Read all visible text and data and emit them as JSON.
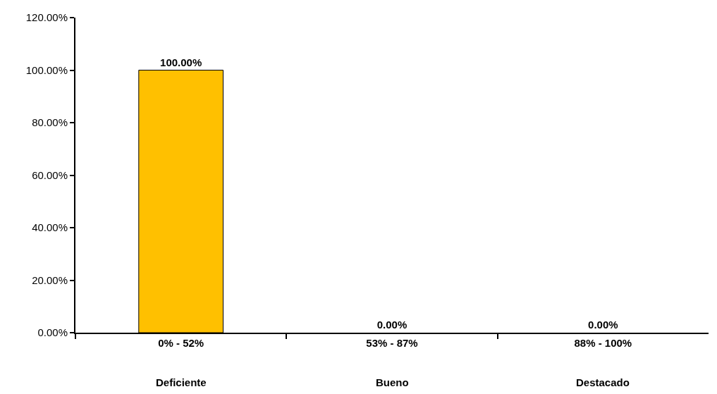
{
  "chart_data": {
    "type": "bar",
    "categories": [
      "0% - 52%",
      "53% - 87%",
      "88% - 100%"
    ],
    "values": [
      100,
      0,
      0
    ],
    "value_labels": [
      "100.00%",
      "0.00%",
      "0.00%"
    ],
    "color": "#ffc000",
    "ylim": [
      0,
      120
    ],
    "yticks": [
      {
        "value": 0,
        "label": "0.00%"
      },
      {
        "value": 20,
        "label": "20.00%"
      },
      {
        "value": 40,
        "label": "40.00%"
      },
      {
        "value": 60,
        "label": "60.00%"
      },
      {
        "value": 80,
        "label": "80.00%"
      },
      {
        "value": 100,
        "label": "100.00%"
      },
      {
        "value": 120,
        "label": "120.00%"
      }
    ],
    "annotations": [
      "Deficiente",
      "Bueno",
      "Destacado"
    ]
  }
}
